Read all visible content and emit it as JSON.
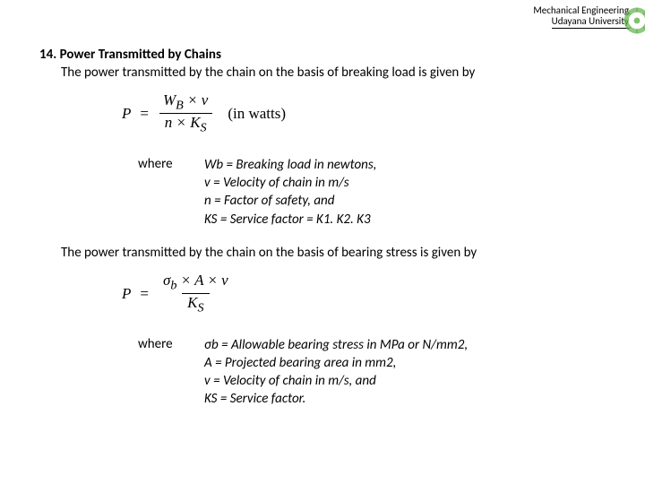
{
  "header": {
    "line1": "Mechanical Engineering",
    "line2": "Udayana University",
    "logo_color_outer": "#5fb04a",
    "logo_color_inner": "#ffffff"
  },
  "section": {
    "number_title": "14. Power Transmitted by Chains",
    "intro1": "The power transmitted by the chain on the basis of breaking load is given by",
    "formula1": {
      "lhs": "P",
      "eq": "=",
      "num_html": "W<sub>B</sub> × ν",
      "den_html": "n × K<sub>S</sub>",
      "note": "(in watts)"
    },
    "where_label": "where",
    "where1": [
      "Wb = Breaking load in newtons,",
      "v = Velocity of chain in m/s",
      "n = Factor of safety, and",
      "KS = Service factor = K1. K2. K3"
    ],
    "intro2": "The power transmitted by the chain on the basis of bearing stress is given by",
    "formula2": {
      "lhs": "P",
      "eq": "=",
      "num_html": "σ<sub>b</sub> × A × ν",
      "den_html": "K<sub>S</sub>",
      "note": ""
    },
    "where2": [
      "σb = Allowable bearing stress in MPa or N/mm2,",
      "A = Projected bearing area in mm2,",
      "v = Velocity of chain in m/s, and",
      "KS = Service factor."
    ]
  }
}
